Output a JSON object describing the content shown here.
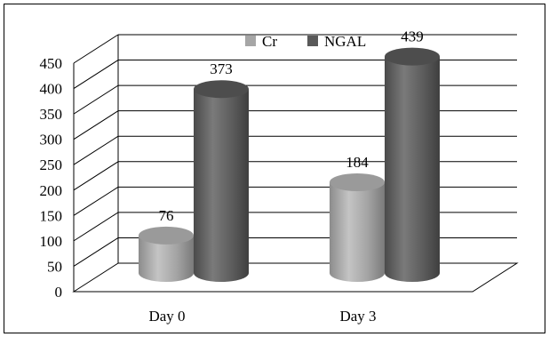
{
  "chart_data": {
    "type": "bar",
    "style": "3d-cylinder",
    "categories": [
      "Day 0",
      "Day 3"
    ],
    "series": [
      {
        "name": "Cr",
        "values": [
          76,
          184
        ],
        "color": "#a6a6a6"
      },
      {
        "name": "NGAL",
        "values": [
          373,
          439
        ],
        "color": "#595959"
      }
    ],
    "ylim": [
      0,
      450
    ],
    "yticks": [
      "0",
      "50",
      "100",
      "150",
      "200",
      "250",
      "300",
      "350",
      "400",
      "450"
    ],
    "grid": true,
    "legend_position": "top-right"
  }
}
